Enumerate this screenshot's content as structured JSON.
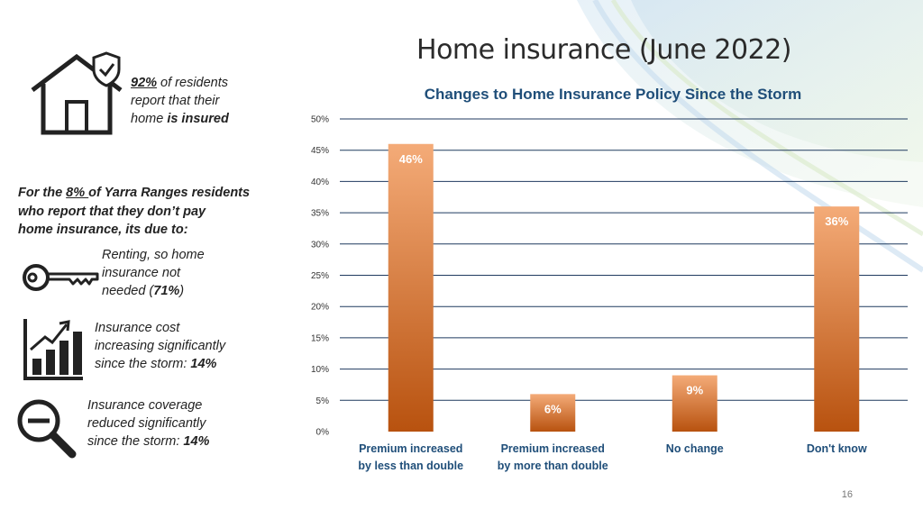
{
  "page": {
    "title": "Home insurance (June 2022)",
    "page_number": "16"
  },
  "insured": {
    "pct": "92%",
    "text_a": " of residents",
    "text_b": "report that their",
    "text_c": "home ",
    "text_d": "is insured"
  },
  "uninsured": {
    "line1_a": "For the ",
    "pct": "8% ",
    "line1_b": "of Yarra Ranges residents",
    "line2": "who report that they don’t pay",
    "line3": "home insurance, its due to:"
  },
  "reasons": [
    {
      "icon": "key-icon",
      "l1": "Renting, so home",
      "l2": "insurance not",
      "l3a": "needed (",
      "l3b": "71%",
      "l3c": ")"
    },
    {
      "icon": "bar-chart-growth-icon",
      "l1": "Insurance cost",
      "l2": "increasing significantly",
      "l3a": "since the storm: ",
      "l3b": "14%"
    },
    {
      "icon": "magnifier-minus-icon",
      "l1": "Insurance coverage",
      "l2": "reduced significantly",
      "l3a": "since the storm: ",
      "l3b": "14%"
    }
  ],
  "colors": {
    "bar_top": "#f4ab78",
    "bar_bottom": "#b8520f",
    "title_blue": "#1f4e79",
    "grid": "#1f3a5f"
  },
  "chart_data": {
    "type": "bar",
    "title": "Changes to Home Insurance Policy Since the Storm",
    "categories": [
      [
        "Premium increased",
        "by less than double"
      ],
      [
        "Premium increased",
        "by more than double"
      ],
      [
        "No change"
      ],
      [
        "Don't know"
      ]
    ],
    "values": [
      46,
      6,
      9,
      36
    ],
    "data_labels": [
      "46%",
      "6%",
      "9%",
      "36%"
    ],
    "ylim": [
      0,
      50
    ],
    "yticks": [
      0,
      5,
      10,
      15,
      20,
      25,
      30,
      35,
      40,
      45,
      50
    ],
    "ytick_labels": [
      "0%",
      "5%",
      "10%",
      "15%",
      "20%",
      "25%",
      "30%",
      "35%",
      "40%",
      "45%",
      "50%"
    ],
    "grid": true,
    "legend": "none"
  }
}
